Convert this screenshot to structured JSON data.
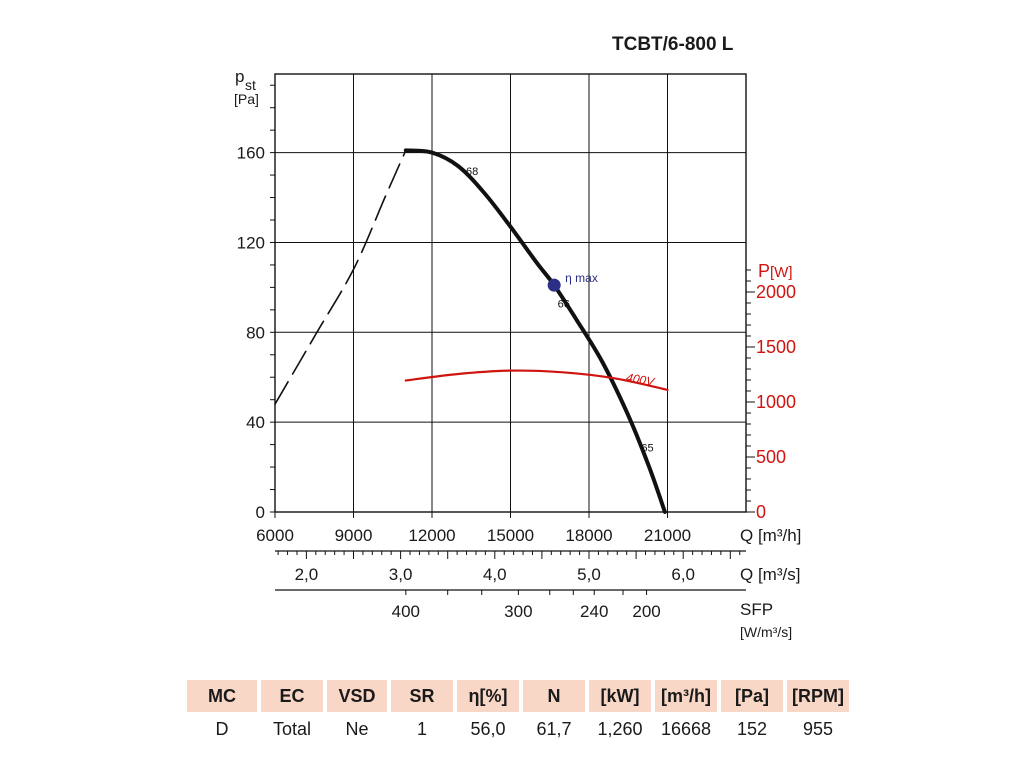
{
  "chart_data": {
    "type": "line",
    "title": "TCBT/6-800 L",
    "y_left": {
      "label_main": "p",
      "label_sub": "st",
      "unit": "[Pa]",
      "range": [
        0,
        195
      ],
      "ticks": [
        0,
        40,
        80,
        120,
        160
      ]
    },
    "y_right": {
      "label_main": "P",
      "unit": "[W]",
      "range": [
        0,
        2000
      ],
      "ticks": [
        0,
        500,
        1000,
        1500,
        2000
      ]
    },
    "x_primary": {
      "label": "Q [m³/h]",
      "range": [
        6000,
        24000
      ],
      "ticks": [
        6000,
        9000,
        12000,
        15000,
        18000,
        21000
      ]
    },
    "x_secondary": {
      "label": "Q [m³/s]",
      "ticks": [
        {
          "value": 2.0,
          "label": "2,0"
        },
        {
          "value": 3.0,
          "label": "3,0"
        },
        {
          "value": 4.0,
          "label": "4,0"
        },
        {
          "value": 5.0,
          "label": "5,0"
        },
        {
          "value": 6.0,
          "label": "6,0"
        }
      ]
    },
    "x_sfp": {
      "label": "SFP",
      "unit": "[W/m³/s]",
      "ticks": [
        {
          "q": 11000,
          "label": "400"
        },
        {
          "q": 15300,
          "label": "300"
        },
        {
          "q": 18200,
          "label": "240"
        },
        {
          "q": 20200,
          "label": "200"
        }
      ]
    },
    "series": [
      {
        "name": "pressure",
        "axis": "left",
        "style": "solid",
        "color": "#111111",
        "x": [
          11000,
          12000,
          13000,
          14000,
          15000,
          16000,
          16668,
          17500,
          18500,
          19500,
          20300,
          20900
        ],
        "y": [
          161,
          160,
          154,
          142,
          127,
          111,
          101,
          86,
          67,
          43,
          20,
          0
        ]
      },
      {
        "name": "pressure-stall",
        "axis": "left",
        "style": "dashed",
        "color": "#111111",
        "x": [
          6000,
          7500,
          9000,
          10200,
          11000
        ],
        "y": [
          48,
          78,
          108,
          140,
          161
        ]
      },
      {
        "name": "400V",
        "axis": "right",
        "style": "solid",
        "color": "#d0140f",
        "x": [
          11000,
          13000,
          15000,
          17000,
          19000,
          21000
        ],
        "y": [
          1195,
          1255,
          1285,
          1270,
          1215,
          1110
        ]
      }
    ],
    "annotations": [
      {
        "id": "eta-max",
        "text": "η max",
        "x": 16668,
        "y": 101,
        "marker_color": "#2c2f86"
      },
      {
        "id": "eff-68",
        "text": "68",
        "x": 13300,
        "y": 150
      },
      {
        "id": "eff-66",
        "text": "66",
        "x": 16800,
        "y": 91
      },
      {
        "id": "eff-65",
        "text": "65",
        "x": 20000,
        "y": 27
      },
      {
        "id": "curve-400v",
        "text": "400V",
        "x": 19400,
        "y": 1190
      }
    ]
  },
  "table": {
    "headers": [
      "MC",
      "EC",
      "VSD",
      "SR",
      "η[%]",
      "N",
      "[kW]",
      "[m³/h]",
      "[Pa]",
      "[RPM]"
    ],
    "values": [
      "D",
      "Total",
      "Ne",
      "1",
      "56,0",
      "61,7",
      "1,260",
      "16668",
      "152",
      "955"
    ]
  }
}
